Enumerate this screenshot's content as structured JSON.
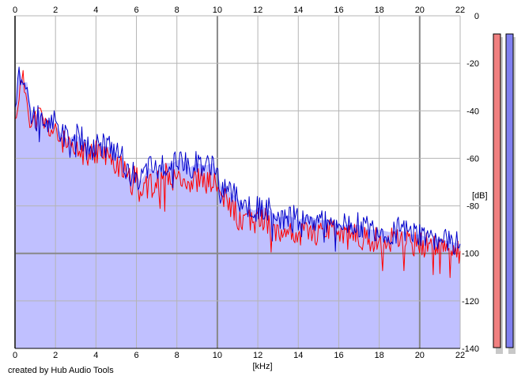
{
  "chart_data": {
    "type": "line",
    "xlabel": "[kHz]",
    "ylabel": "[dB]",
    "xlim": [
      0,
      22
    ],
    "ylim": [
      -140,
      0
    ],
    "x_ticks": [
      0,
      2,
      4,
      6,
      8,
      10,
      12,
      14,
      16,
      18,
      20,
      22
    ],
    "y_ticks": [
      0,
      -20,
      -40,
      -60,
      -80,
      -100,
      -120,
      -140
    ],
    "grid": true,
    "fill_color": "#c0c0ff",
    "series": [
      {
        "color": "#ff0000",
        "x": [
          0,
          0.2,
          0.4,
          0.6,
          0.8,
          1.0,
          1.2,
          1.5,
          1.8,
          2.0,
          2.3,
          2.6,
          3.0,
          3.3,
          3.6,
          4.0,
          4.3,
          4.6,
          5.0,
          5.3,
          5.6,
          5.9,
          6.2,
          6.6,
          7.0,
          7.4,
          7.8,
          8.2,
          8.6,
          9.0,
          9.4,
          9.8,
          10.2,
          10.6,
          11.0,
          11.4,
          11.8,
          12.2,
          12.6,
          13.0,
          13.5,
          14.0,
          14.5,
          15.0,
          15.5,
          16.0,
          16.5,
          17.0,
          17.5,
          18.0,
          18.5,
          19.0,
          19.5,
          20.0,
          20.5,
          21.0,
          21.5,
          22.0
        ],
        "values": [
          -45,
          -32,
          -28,
          -34,
          -46,
          -44,
          -42,
          -46,
          -48,
          -50,
          -52,
          -56,
          -58,
          -57,
          -60,
          -57,
          -58,
          -60,
          -62,
          -64,
          -70,
          -67,
          -72,
          -68,
          -70,
          -67,
          -68,
          -66,
          -70,
          -69,
          -70,
          -70,
          -76,
          -80,
          -82,
          -86,
          -87,
          -85,
          -88,
          -90,
          -90,
          -92,
          -90,
          -91,
          -91,
          -92,
          -93,
          -93,
          -94,
          -94,
          -95,
          -94,
          -96,
          -96,
          -97,
          -97,
          -98,
          -99
        ]
      },
      {
        "color": "#0000cc",
        "x": [
          0,
          0.2,
          0.4,
          0.6,
          0.8,
          1.0,
          1.2,
          1.5,
          1.8,
          2.0,
          2.3,
          2.6,
          3.0,
          3.3,
          3.6,
          4.0,
          4.3,
          4.6,
          5.0,
          5.3,
          5.6,
          5.9,
          6.2,
          6.6,
          7.0,
          7.4,
          7.8,
          8.2,
          8.6,
          9.0,
          9.4,
          9.8,
          10.2,
          10.6,
          11.0,
          11.4,
          11.8,
          12.2,
          12.6,
          13.0,
          13.5,
          14.0,
          14.5,
          15.0,
          15.5,
          16.0,
          16.5,
          17.0,
          17.5,
          18.0,
          18.5,
          19.0,
          19.5,
          20.0,
          20.5,
          21.0,
          21.5,
          22.0
        ],
        "values": [
          -42,
          -22,
          -30,
          -28,
          -40,
          -42,
          -40,
          -44,
          -44,
          -46,
          -50,
          -52,
          -50,
          -52,
          -56,
          -54,
          -55,
          -55,
          -58,
          -60,
          -68,
          -65,
          -70,
          -64,
          -66,
          -62,
          -62,
          -60,
          -64,
          -62,
          -63,
          -62,
          -72,
          -74,
          -77,
          -80,
          -82,
          -80,
          -82,
          -85,
          -84,
          -86,
          -84,
          -86,
          -86,
          -88,
          -88,
          -88,
          -90,
          -90,
          -91,
          -90,
          -92,
          -92,
          -94,
          -94,
          -95,
          -96
        ]
      }
    ]
  },
  "meters": {
    "left_color": "#f08080",
    "right_color": "#8080f0"
  },
  "credit": "created by Hub Audio Tools"
}
